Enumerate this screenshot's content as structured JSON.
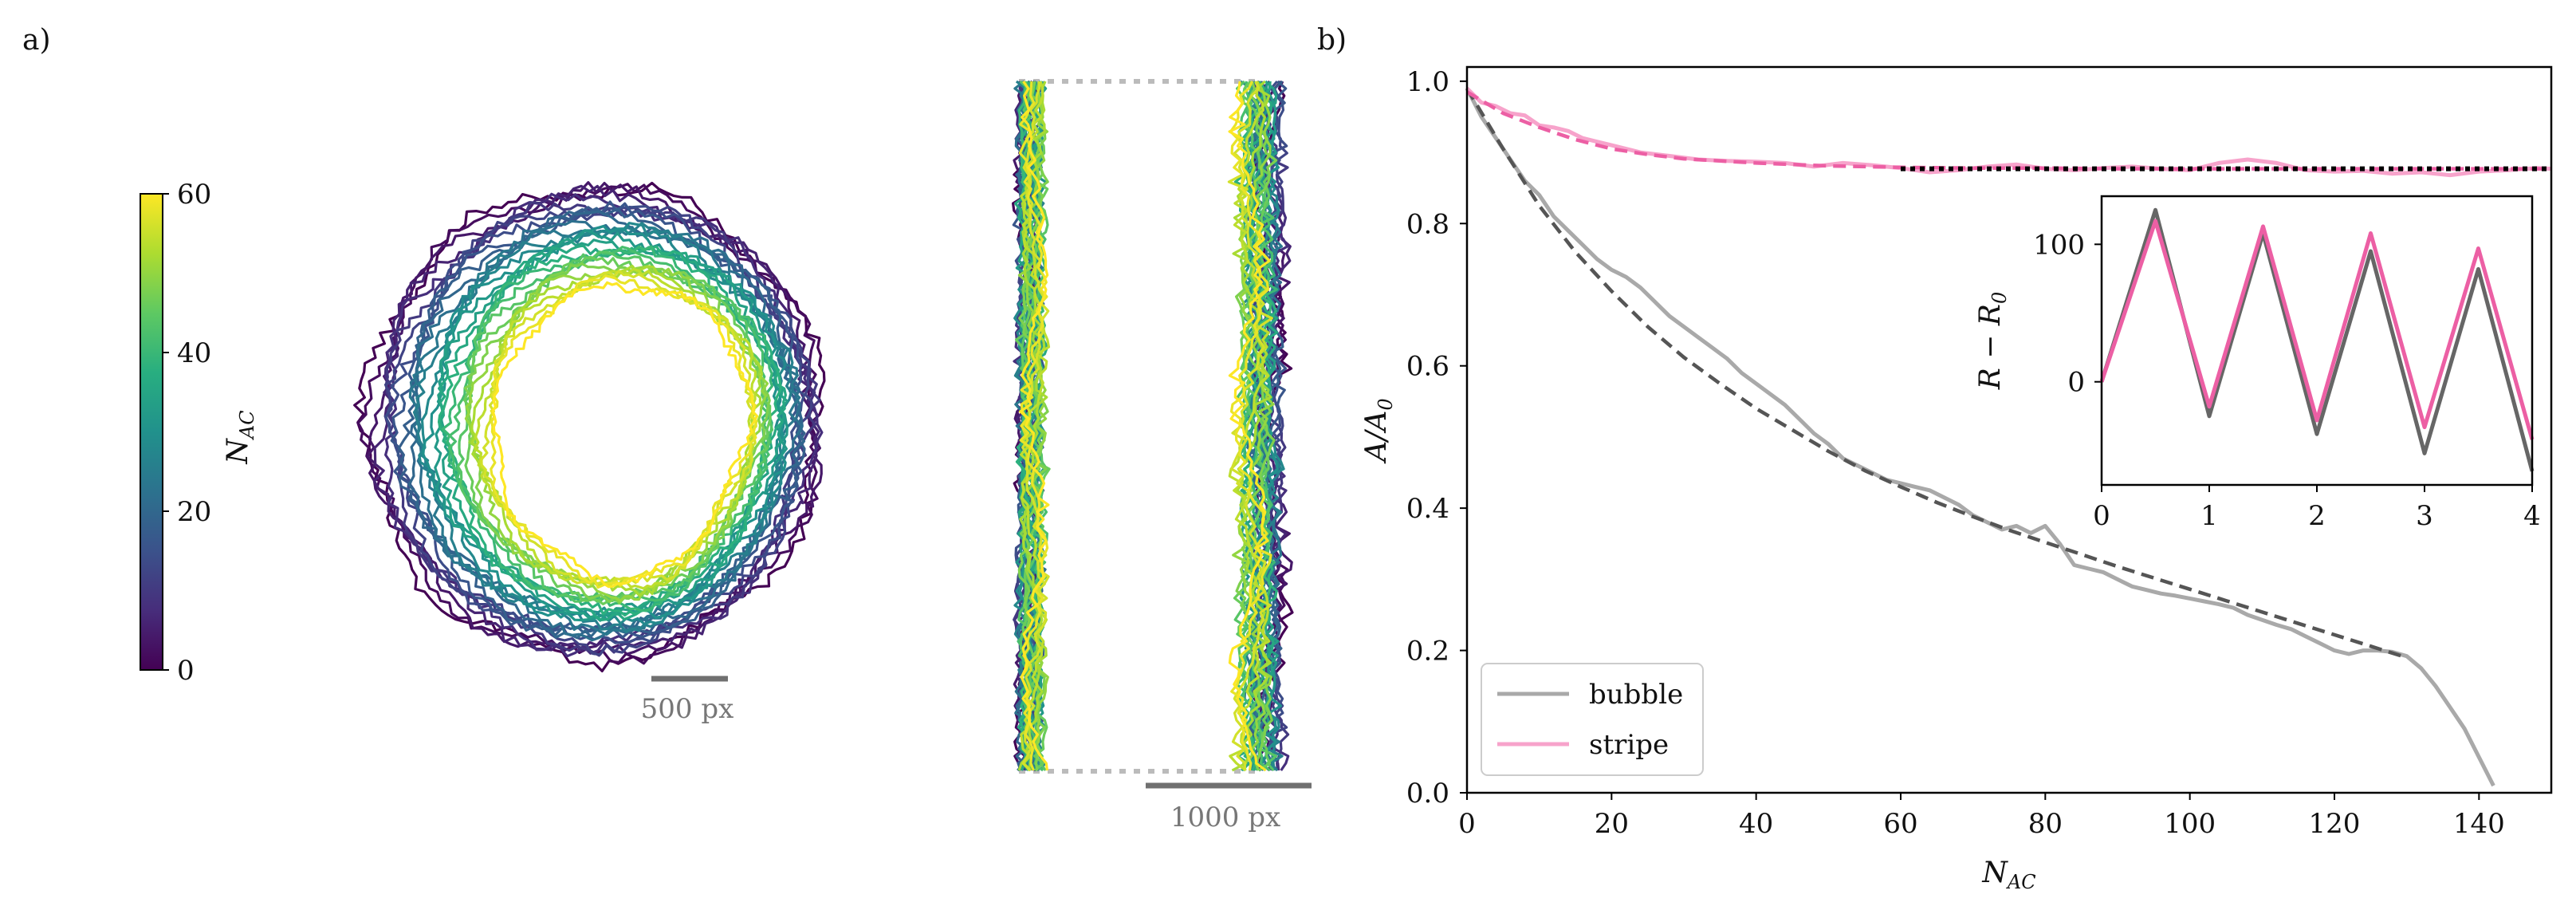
{
  "panel_a": {
    "label": "a)",
    "colorbar": {
      "label_main": "N",
      "label_sub": "AC",
      "ticks": [
        "0",
        "20",
        "40",
        "60"
      ],
      "min": 0,
      "max": 60
    },
    "bubble_scalebar_label": "500 px",
    "stripe_scalebar_label": "1000 px",
    "n_contours": 31
  },
  "panel_b": {
    "label": "b)"
  },
  "colors": {
    "bubble": "#a9a9a9",
    "bubble_fit": "#555555",
    "stripe": "#f7a3cb",
    "stripe_fit": "#ec5fa4",
    "inset_bubble": "#666666",
    "inset_stripe": "#ec5fa4",
    "plateau": "#000000",
    "scalebar": "#707070",
    "guide": "#bbbbbb"
  },
  "chart_data": [
    {
      "type": "line",
      "title": "",
      "xlabel_main": "N",
      "xlabel_sub": "AC",
      "ylabel_main": "A/A",
      "ylabel_sub": "0",
      "xlim": [
        0,
        150
      ],
      "ylim": [
        0,
        1.02
      ],
      "xticks": [
        "0",
        "20",
        "40",
        "60",
        "80",
        "100",
        "120",
        "140"
      ],
      "xtick_values": [
        0,
        20,
        40,
        60,
        80,
        100,
        120,
        140
      ],
      "yticks": [
        "0.0",
        "0.2",
        "0.4",
        "0.6",
        "0.8",
        "1.0"
      ],
      "ytick_values": [
        0,
        0.2,
        0.4,
        0.6,
        0.8,
        1.0
      ],
      "legend_position": "lower-left",
      "plateau": {
        "y": 0.877,
        "x_from": 60,
        "x_to": 150
      },
      "series": [
        {
          "name": "bubble",
          "style": "solid",
          "x": [
            0,
            2,
            4,
            6,
            8,
            10,
            12,
            14,
            16,
            18,
            20,
            22,
            24,
            26,
            28,
            30,
            32,
            34,
            36,
            38,
            40,
            42,
            44,
            46,
            48,
            50,
            52,
            54,
            56,
            58,
            60,
            62,
            64,
            66,
            68,
            70,
            72,
            74,
            76,
            78,
            80,
            82,
            84,
            86,
            88,
            90,
            92,
            94,
            96,
            98,
            100,
            102,
            104,
            106,
            108,
            110,
            112,
            114,
            116,
            118,
            120,
            122,
            124,
            126,
            128,
            130,
            132,
            134,
            136,
            138,
            140,
            142
          ],
          "y": [
            0.99,
            0.95,
            0.92,
            0.89,
            0.86,
            0.84,
            0.81,
            0.79,
            0.77,
            0.75,
            0.735,
            0.725,
            0.71,
            0.69,
            0.67,
            0.655,
            0.64,
            0.625,
            0.61,
            0.59,
            0.575,
            0.56,
            0.545,
            0.525,
            0.505,
            0.49,
            0.47,
            0.46,
            0.45,
            0.44,
            0.435,
            0.43,
            0.425,
            0.415,
            0.405,
            0.39,
            0.38,
            0.37,
            0.375,
            0.365,
            0.375,
            0.35,
            0.32,
            0.315,
            0.31,
            0.3,
            0.29,
            0.285,
            0.28,
            0.277,
            0.273,
            0.269,
            0.265,
            0.26,
            0.25,
            0.243,
            0.236,
            0.23,
            0.22,
            0.21,
            0.2,
            0.195,
            0.2,
            0.2,
            0.198,
            0.192,
            0.175,
            0.15,
            0.12,
            0.09,
            0.05,
            0.01
          ]
        },
        {
          "name": "bubble fit",
          "style": "dashed",
          "x": [
            0,
            5,
            10,
            15,
            20,
            25,
            30,
            35,
            40,
            45,
            50,
            55,
            60,
            65,
            70,
            75,
            80,
            85,
            90,
            95,
            100,
            105,
            110,
            115,
            120,
            125,
            130
          ],
          "y": [
            0.99,
            0.905,
            0.825,
            0.76,
            0.705,
            0.655,
            0.612,
            0.575,
            0.54,
            0.51,
            0.48,
            0.453,
            0.43,
            0.408,
            0.388,
            0.369,
            0.352,
            0.335,
            0.318,
            0.302,
            0.286,
            0.27,
            0.254,
            0.238,
            0.222,
            0.206,
            0.19
          ]
        },
        {
          "name": "stripe",
          "style": "solid",
          "x": [
            0,
            2,
            4,
            6,
            8,
            10,
            12,
            14,
            16,
            18,
            20,
            24,
            28,
            32,
            36,
            40,
            44,
            48,
            52,
            56,
            60,
            64,
            68,
            72,
            76,
            80,
            84,
            88,
            92,
            96,
            100,
            104,
            108,
            112,
            116,
            120,
            124,
            128,
            132,
            136,
            140,
            144,
            148,
            150
          ],
          "y": [
            0.99,
            0.97,
            0.965,
            0.955,
            0.952,
            0.938,
            0.935,
            0.93,
            0.92,
            0.915,
            0.91,
            0.9,
            0.895,
            0.89,
            0.888,
            0.887,
            0.885,
            0.88,
            0.885,
            0.882,
            0.878,
            0.872,
            0.875,
            0.88,
            0.883,
            0.877,
            0.875,
            0.878,
            0.88,
            0.877,
            0.875,
            0.885,
            0.89,
            0.885,
            0.875,
            0.873,
            0.874,
            0.87,
            0.872,
            0.868,
            0.873,
            0.875,
            0.878,
            0.877
          ]
        },
        {
          "name": "stripe fit",
          "style": "dashed",
          "x": [
            0,
            5,
            10,
            15,
            20,
            25,
            30,
            40,
            50,
            60,
            70,
            80,
            90,
            100,
            110,
            120,
            130,
            140,
            150
          ],
          "y": [
            0.985,
            0.955,
            0.935,
            0.918,
            0.905,
            0.897,
            0.891,
            0.885,
            0.881,
            0.879,
            0.878,
            0.878,
            0.877,
            0.877,
            0.877,
            0.877,
            0.877,
            0.877,
            0.877
          ]
        }
      ],
      "legend": [
        "bubble",
        "stripe"
      ]
    },
    {
      "type": "line",
      "title": "",
      "xlabel": "",
      "ylabel": "R − R0",
      "ylabel_main": "R − R",
      "ylabel_sub": "0",
      "xlim": [
        0,
        4
      ],
      "ylim": [
        -75,
        135
      ],
      "xticks": [
        "0",
        "1",
        "2",
        "3",
        "4"
      ],
      "xtick_values": [
        0,
        1,
        2,
        3,
        4
      ],
      "yticks": [
        "0",
        "100"
      ],
      "ytick_values": [
        0,
        100
      ],
      "series": [
        {
          "name": "bubble",
          "x": [
            0,
            0.5,
            1,
            1.5,
            2,
            2.5,
            3,
            3.5,
            4
          ],
          "y": [
            0,
            125,
            -25,
            108,
            -38,
            95,
            -52,
            82,
            -65
          ]
        },
        {
          "name": "stripe",
          "x": [
            0,
            0.5,
            1,
            1.5,
            2,
            2.5,
            3,
            3.5,
            4
          ],
          "y": [
            0,
            117,
            -18,
            113,
            -28,
            108,
            -33,
            97,
            -42
          ]
        }
      ]
    }
  ]
}
